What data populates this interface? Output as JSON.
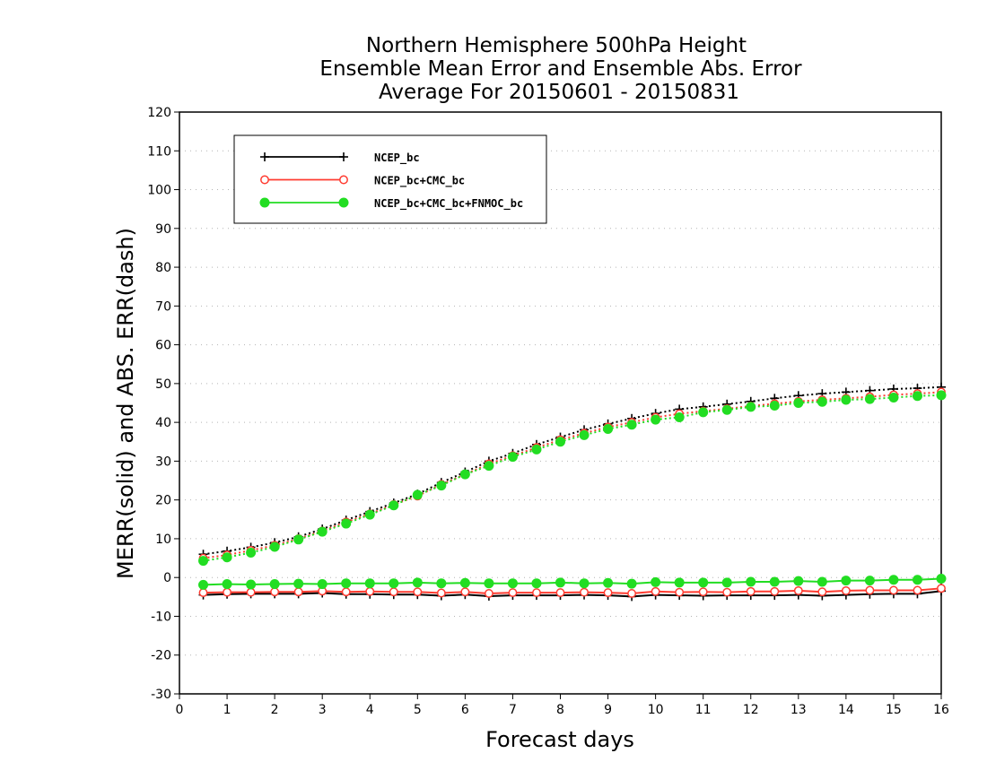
{
  "chart_data": {
    "type": "line",
    "title": [
      "Northern Hemisphere 500hPa Height",
      "Ensemble Mean Error and Ensemble Abs. Error",
      "Average For 20150601 - 20150831"
    ],
    "xlabel": "Forecast days",
    "ylabel": "MERR(solid) and ABS. ERR(dash)",
    "xlim": [
      0,
      16
    ],
    "ylim": [
      -30,
      120
    ],
    "xticks": [
      0,
      1,
      2,
      3,
      4,
      5,
      6,
      7,
      8,
      9,
      10,
      11,
      12,
      13,
      14,
      15,
      16
    ],
    "yticks": [
      -30,
      -20,
      -10,
      0,
      10,
      20,
      30,
      40,
      50,
      60,
      70,
      80,
      90,
      100,
      110,
      120
    ],
    "grid": true,
    "legend_position": "top-left",
    "x": [
      0.5,
      1,
      1.5,
      2,
      2.5,
      3,
      3.5,
      4,
      4.5,
      5,
      5.5,
      6,
      6.5,
      7,
      7.5,
      8,
      8.5,
      9,
      9.5,
      10,
      10.5,
      11,
      11.5,
      12,
      12.5,
      13,
      13.5,
      14,
      14.5,
      15,
      15.5,
      16
    ],
    "series": [
      {
        "name": "NCEP_bc",
        "color": "#000000",
        "marker": "plus",
        "merr": [
          -4.5,
          -4.3,
          -4.2,
          -4.2,
          -4.2,
          -4.0,
          -4.3,
          -4.3,
          -4.4,
          -4.4,
          -4.7,
          -4.4,
          -4.8,
          -4.6,
          -4.6,
          -4.6,
          -4.5,
          -4.6,
          -4.9,
          -4.5,
          -4.6,
          -4.7,
          -4.6,
          -4.6,
          -4.6,
          -4.5,
          -4.7,
          -4.5,
          -4.3,
          -4.2,
          -4.2,
          -3.5
        ],
        "abs_err": [
          6.0,
          6.8,
          7.8,
          9.0,
          10.5,
          12.5,
          14.8,
          17.0,
          19.2,
          21.5,
          24.5,
          27.2,
          30.0,
          32.0,
          34.3,
          36.2,
          38.1,
          39.6,
          41.0,
          42.3,
          43.4,
          44.0,
          44.7,
          45.4,
          46.2,
          46.9,
          47.4,
          47.8,
          48.2,
          48.6,
          48.8,
          49.1
        ]
      },
      {
        "name": "NCEP_bc+CMC_bc",
        "color": "#ff3b30",
        "marker": "open-circle",
        "merr": [
          -3.9,
          -3.8,
          -3.8,
          -3.7,
          -3.7,
          -3.5,
          -3.7,
          -3.6,
          -3.7,
          -3.7,
          -4.0,
          -3.7,
          -4.1,
          -3.9,
          -3.9,
          -3.9,
          -3.8,
          -3.9,
          -4.1,
          -3.6,
          -3.8,
          -3.7,
          -3.8,
          -3.6,
          -3.6,
          -3.4,
          -3.7,
          -3.4,
          -3.3,
          -3.3,
          -3.3,
          -2.8
        ],
        "abs_err": [
          5.0,
          5.8,
          7.0,
          8.3,
          10.0,
          12.0,
          14.3,
          16.4,
          18.8,
          21.0,
          24.0,
          26.6,
          29.3,
          31.4,
          33.5,
          35.5,
          37.2,
          38.8,
          40.0,
          41.3,
          42.2,
          42.9,
          43.5,
          44.2,
          44.8,
          45.4,
          45.8,
          46.2,
          46.6,
          47.1,
          47.4,
          47.8
        ]
      },
      {
        "name": "NCEP_bc+CMC_bc+FNMOC_bc",
        "color": "#22dd22",
        "marker": "filled-circle",
        "merr": [
          -1.9,
          -1.7,
          -1.8,
          -1.7,
          -1.6,
          -1.7,
          -1.5,
          -1.5,
          -1.5,
          -1.3,
          -1.5,
          -1.4,
          -1.5,
          -1.5,
          -1.5,
          -1.3,
          -1.5,
          -1.4,
          -1.6,
          -1.2,
          -1.3,
          -1.3,
          -1.3,
          -1.1,
          -1.1,
          -0.9,
          -1.1,
          -0.8,
          -0.8,
          -0.6,
          -0.6,
          -0.3
        ],
        "abs_err": [
          4.3,
          5.2,
          6.4,
          7.9,
          9.8,
          11.8,
          13.9,
          16.2,
          18.6,
          21.3,
          23.7,
          26.6,
          28.8,
          31.1,
          33.0,
          35.0,
          36.7,
          38.3,
          39.4,
          40.7,
          41.3,
          42.6,
          43.2,
          44.0,
          44.3,
          45.0,
          45.3,
          45.8,
          46.0,
          46.4,
          46.8,
          47.0
        ]
      }
    ]
  }
}
